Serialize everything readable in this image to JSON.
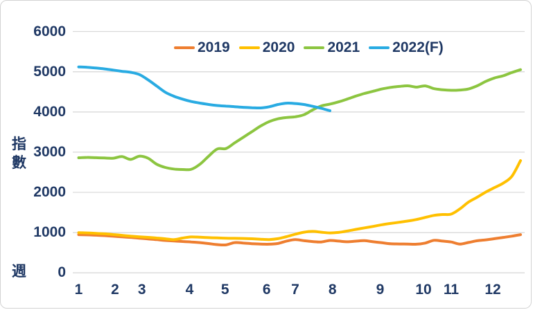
{
  "colors": {
    "text": "#1f3864",
    "grid": "#d9d9d9",
    "background": "#ffffff",
    "card_border": "#d2d2d2",
    "series_2019": "#ee7e30",
    "series_2020": "#ffc000",
    "series_2021": "#8cc540",
    "series_2022f": "#29abe2"
  },
  "chart_data": {
    "type": "line",
    "title": "",
    "ylabel": "指數",
    "xlabel": "週",
    "x_unit": "week-of-year, labeled by month 1-12",
    "ylim": [
      0,
      6000
    ],
    "yticks": [
      0,
      1000,
      2000,
      3000,
      4000,
      5000,
      6000
    ],
    "xticks": [
      {
        "label": "1",
        "week": 1
      },
      {
        "label": "2",
        "week": 5.2
      },
      {
        "label": "3",
        "week": 8.3
      },
      {
        "label": "4",
        "week": 13.8
      },
      {
        "label": "5",
        "week": 17.9
      },
      {
        "label": "6",
        "week": 22.7
      },
      {
        "label": "7",
        "week": 26
      },
      {
        "label": "8",
        "week": 30.3
      },
      {
        "label": "9",
        "week": 35.8
      },
      {
        "label": "10",
        "week": 40.8
      },
      {
        "label": "11",
        "week": 44
      },
      {
        "label": "12",
        "week": 48.8
      }
    ],
    "grid": "horizontal",
    "legend_position": "top",
    "series": [
      {
        "name": "2019",
        "color": "#ee7e30",
        "start_week": 1,
        "values": [
          950,
          945,
          935,
          925,
          910,
          895,
          880,
          862,
          845,
          825,
          805,
          792,
          780,
          768,
          752,
          728,
          702,
          695,
          752,
          742,
          725,
          715,
          712,
          730,
          790,
          825,
          800,
          778,
          768,
          805,
          790,
          772,
          788,
          800,
          772,
          748,
          722,
          718,
          715,
          712,
          740,
          808,
          790,
          768,
          715,
          755,
          798,
          820,
          850,
          880,
          912,
          950
        ]
      },
      {
        "name": "2020",
        "color": "#ffc000",
        "start_week": 1,
        "values": [
          1000,
          992,
          982,
          970,
          952,
          932,
          912,
          896,
          882,
          866,
          846,
          826,
          866,
          892,
          886,
          876,
          868,
          862,
          858,
          855,
          848,
          836,
          828,
          850,
          900,
          960,
          1010,
          1030,
          1010,
          992,
          1005,
          1040,
          1080,
          1118,
          1155,
          1195,
          1228,
          1258,
          1288,
          1326,
          1378,
          1428,
          1450,
          1460,
          1590,
          1760,
          1880,
          2010,
          2120,
          2230,
          2400,
          2790
        ]
      },
      {
        "name": "2021",
        "color": "#8cc540",
        "start_week": 1,
        "values": [
          2860,
          2870,
          2862,
          2855,
          2850,
          2890,
          2820,
          2900,
          2850,
          2700,
          2620,
          2580,
          2568,
          2575,
          2700,
          2900,
          3080,
          3090,
          3230,
          3370,
          3510,
          3650,
          3760,
          3830,
          3862,
          3880,
          3930,
          4050,
          4150,
          4195,
          4250,
          4320,
          4395,
          4460,
          4515,
          4570,
          4610,
          4635,
          4650,
          4618,
          4648,
          4580,
          4550,
          4538,
          4545,
          4570,
          4650,
          4760,
          4845,
          4900,
          4980,
          5050
        ]
      },
      {
        "name": "2022(F)",
        "color": "#29abe2",
        "start_week": 1,
        "values": [
          5120,
          5110,
          5092,
          5070,
          5040,
          5010,
          4985,
          4930,
          4800,
          4645,
          4490,
          4390,
          4318,
          4260,
          4220,
          4185,
          4160,
          4145,
          4130,
          4115,
          4105,
          4100,
          4128,
          4185,
          4218,
          4210,
          4185,
          4140,
          4090,
          4030
        ]
      }
    ]
  }
}
